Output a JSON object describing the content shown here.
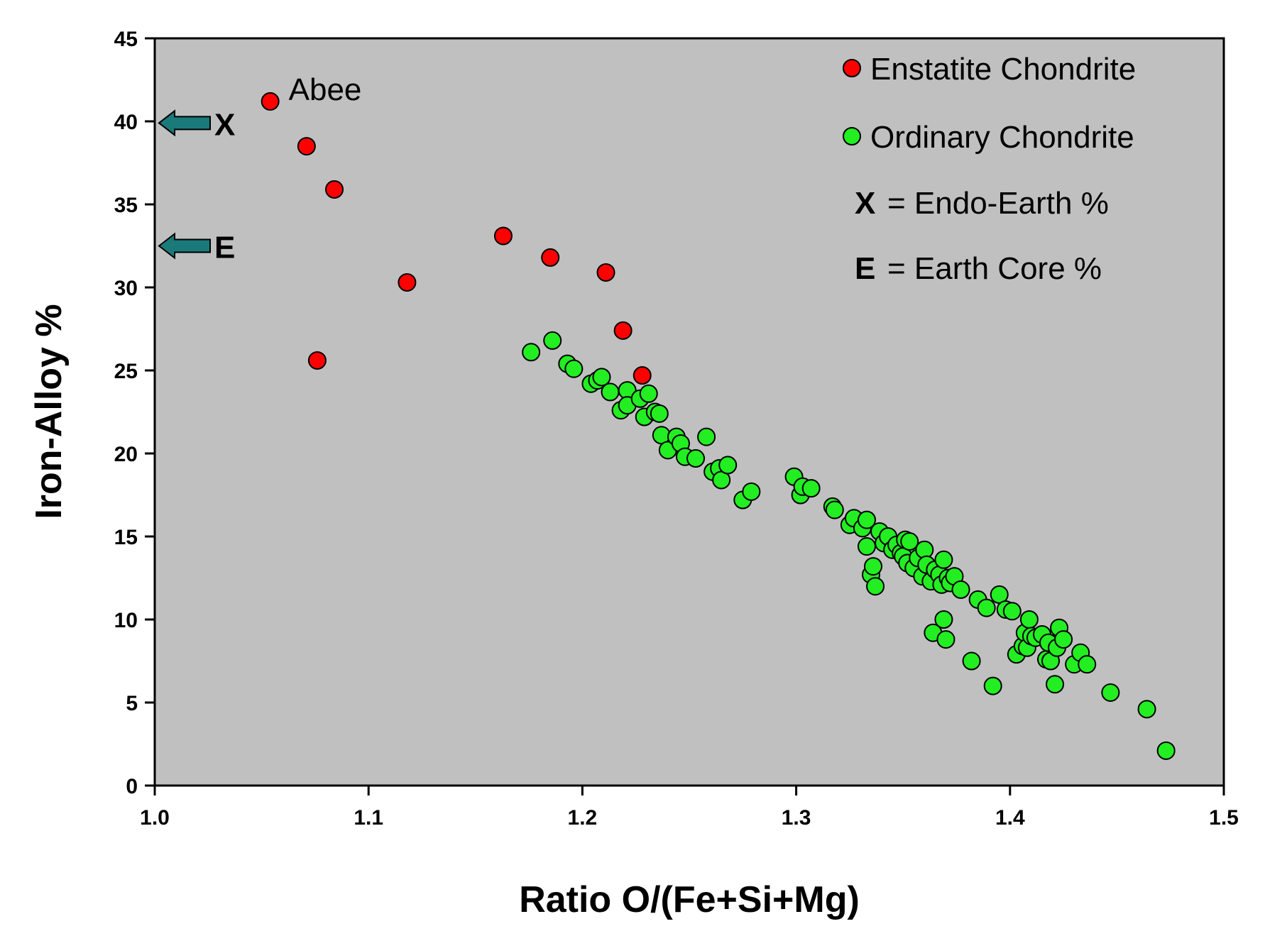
{
  "chart_data": {
    "type": "scatter",
    "title": "",
    "xlabel": "Ratio O/(Fe+Si+Mg)",
    "ylabel": "Iron-Alloy %",
    "xlim": [
      1.0,
      1.5
    ],
    "ylim": [
      0,
      45
    ],
    "xticks": [
      1.0,
      1.1,
      1.2,
      1.3,
      1.4,
      1.5
    ],
    "xtick_labels": [
      "1.0",
      "1.1",
      "1.2",
      "1.3",
      "1.4",
      "1.5"
    ],
    "yticks": [
      0,
      5,
      10,
      15,
      20,
      25,
      30,
      35,
      40,
      45
    ],
    "ytick_labels": [
      "0",
      "5",
      "10",
      "15",
      "20",
      "25",
      "30",
      "35",
      "40",
      "45"
    ],
    "grid": false,
    "plot_background": "#c0c0c0",
    "series": [
      {
        "name": "Enstatite Chondrite",
        "color": "#ff0000",
        "points": [
          [
            1.054,
            41.2
          ],
          [
            1.071,
            38.5
          ],
          [
            1.084,
            35.9
          ],
          [
            1.118,
            30.3
          ],
          [
            1.076,
            25.6
          ],
          [
            1.163,
            33.1
          ],
          [
            1.185,
            31.8
          ],
          [
            1.211,
            30.9
          ],
          [
            1.219,
            27.4
          ],
          [
            1.228,
            24.7
          ]
        ]
      },
      {
        "name": "Ordinary Chondrite",
        "color": "#22ee22",
        "points": [
          [
            1.176,
            26.1
          ],
          [
            1.186,
            26.8
          ],
          [
            1.193,
            25.4
          ],
          [
            1.196,
            25.1
          ],
          [
            1.204,
            24.2
          ],
          [
            1.207,
            24.4
          ],
          [
            1.209,
            24.6
          ],
          [
            1.213,
            23.7
          ],
          [
            1.218,
            22.6
          ],
          [
            1.221,
            23.8
          ],
          [
            1.221,
            22.9
          ],
          [
            1.227,
            23.3
          ],
          [
            1.229,
            22.2
          ],
          [
            1.231,
            23.6
          ],
          [
            1.234,
            22.5
          ],
          [
            1.236,
            22.4
          ],
          [
            1.237,
            21.1
          ],
          [
            1.24,
            20.2
          ],
          [
            1.244,
            21.0
          ],
          [
            1.246,
            20.6
          ],
          [
            1.248,
            19.8
          ],
          [
            1.253,
            19.7
          ],
          [
            1.258,
            21.0
          ],
          [
            1.261,
            18.9
          ],
          [
            1.264,
            19.1
          ],
          [
            1.265,
            18.4
          ],
          [
            1.268,
            19.3
          ],
          [
            1.275,
            17.2
          ],
          [
            1.279,
            17.7
          ],
          [
            1.299,
            18.6
          ],
          [
            1.302,
            17.5
          ],
          [
            1.303,
            18.0
          ],
          [
            1.307,
            17.9
          ],
          [
            1.317,
            16.8
          ],
          [
            1.318,
            16.6
          ],
          [
            1.325,
            15.7
          ],
          [
            1.327,
            16.1
          ],
          [
            1.331,
            15.5
          ],
          [
            1.333,
            16.0
          ],
          [
            1.333,
            14.4
          ],
          [
            1.335,
            12.7
          ],
          [
            1.336,
            13.2
          ],
          [
            1.337,
            12.0
          ],
          [
            1.339,
            15.3
          ],
          [
            1.341,
            14.6
          ],
          [
            1.343,
            15.0
          ],
          [
            1.345,
            14.2
          ],
          [
            1.347,
            14.5
          ],
          [
            1.349,
            14.0
          ],
          [
            1.35,
            13.8
          ],
          [
            1.351,
            14.8
          ],
          [
            1.352,
            13.4
          ],
          [
            1.353,
            14.7
          ],
          [
            1.355,
            13.1
          ],
          [
            1.357,
            13.7
          ],
          [
            1.359,
            12.6
          ],
          [
            1.36,
            14.2
          ],
          [
            1.361,
            13.3
          ],
          [
            1.363,
            12.3
          ],
          [
            1.364,
            9.2
          ],
          [
            1.365,
            13.0
          ],
          [
            1.367,
            12.7
          ],
          [
            1.368,
            12.1
          ],
          [
            1.369,
            13.6
          ],
          [
            1.369,
            10.0
          ],
          [
            1.37,
            8.8
          ],
          [
            1.371,
            12.5
          ],
          [
            1.372,
            12.2
          ],
          [
            1.374,
            12.6
          ],
          [
            1.377,
            11.8
          ],
          [
            1.382,
            7.5
          ],
          [
            1.385,
            11.2
          ],
          [
            1.389,
            10.7
          ],
          [
            1.392,
            6.0
          ],
          [
            1.395,
            11.5
          ],
          [
            1.398,
            10.6
          ],
          [
            1.401,
            10.5
          ],
          [
            1.403,
            7.9
          ],
          [
            1.406,
            8.4
          ],
          [
            1.407,
            9.2
          ],
          [
            1.408,
            8.3
          ],
          [
            1.409,
            10.0
          ],
          [
            1.41,
            9.0
          ],
          [
            1.412,
            8.9
          ],
          [
            1.415,
            9.1
          ],
          [
            1.417,
            7.6
          ],
          [
            1.418,
            8.6
          ],
          [
            1.419,
            7.5
          ],
          [
            1.421,
            6.1
          ],
          [
            1.422,
            8.3
          ],
          [
            1.423,
            9.5
          ],
          [
            1.425,
            8.8
          ],
          [
            1.43,
            7.3
          ],
          [
            1.433,
            8.0
          ],
          [
            1.436,
            7.3
          ],
          [
            1.447,
            5.6
          ],
          [
            1.464,
            4.6
          ],
          [
            1.473,
            2.1
          ]
        ]
      }
    ],
    "annotations": [
      {
        "text": "Abee",
        "x": 1.054,
        "y": 41.2
      }
    ],
    "arrow_markers": [
      {
        "label": "X",
        "y": 39.9,
        "color": "#1a7a7a"
      },
      {
        "label": "E",
        "y": 32.5,
        "color": "#1a7a7a"
      }
    ],
    "legend": {
      "position": "top-right",
      "series_entries": [
        "Enstatite Chondrite",
        "Ordinary Chondrite"
      ],
      "notes": [
        {
          "symbol": "X",
          "text": "= Endo-Earth %"
        },
        {
          "symbol": "E",
          "text": "= Earth Core %"
        }
      ]
    }
  }
}
